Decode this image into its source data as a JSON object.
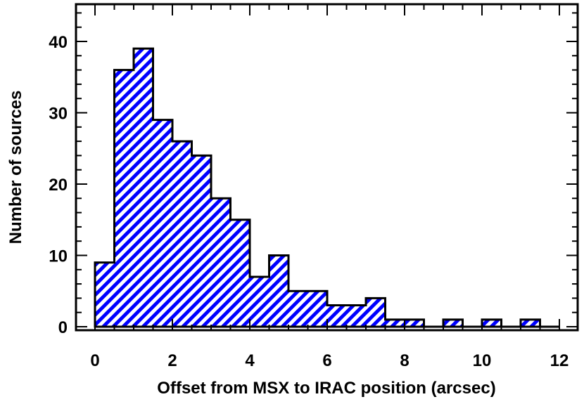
{
  "chart_data": {
    "type": "bar",
    "title": "",
    "xlabel": "Offset from MSX to IRAC position (arcsec)",
    "ylabel": "Number of sources",
    "xlim": [
      0,
      12
    ],
    "ylim": [
      0,
      45
    ],
    "bin_width": 0.5,
    "bin_starts": [
      0,
      0.5,
      1,
      1.5,
      2,
      2.5,
      3,
      3.5,
      4,
      4.5,
      5,
      5.5,
      6,
      6.5,
      7,
      7.5,
      8,
      8.5,
      9,
      9.5,
      10,
      10.5,
      11,
      11.5
    ],
    "values": [
      9,
      36,
      39,
      29,
      26,
      24,
      18,
      15,
      7,
      10,
      5,
      5,
      3,
      3,
      4,
      1,
      1,
      0,
      1,
      0,
      1,
      0,
      1,
      0
    ],
    "x_ticks": [
      "0",
      "2",
      "4",
      "6",
      "8",
      "10",
      "12"
    ],
    "y_ticks": [
      "0",
      "10",
      "20",
      "30",
      "40"
    ],
    "fill_color": "#0000ff",
    "hatch": "diagonal",
    "grid": false
  }
}
